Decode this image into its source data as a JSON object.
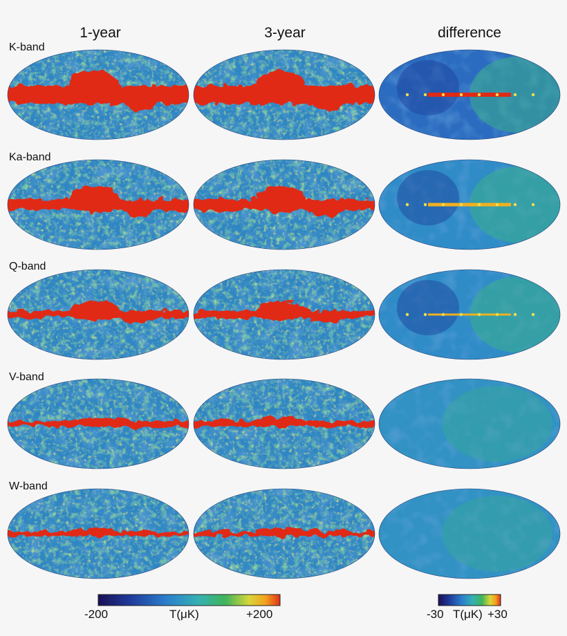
{
  "columns": [
    "1-year",
    "3-year",
    "difference"
  ],
  "bands": [
    {
      "label": "K-band",
      "gal_width": 26,
      "bulge": 22
    },
    {
      "label": "Ka-band",
      "gal_width": 16,
      "bulge": 20
    },
    {
      "label": "Q-band",
      "gal_width": 11,
      "bulge": 14
    },
    {
      "label": "V-band",
      "gal_width": 8,
      "bulge": 5
    },
    {
      "label": "W-band",
      "gal_width": 7,
      "bulge": 4
    }
  ],
  "colorbar_main": {
    "min_label": "-200",
    "mid_label": "T(μK)",
    "max_label": "+200"
  },
  "colorbar_diff": {
    "min_label": "-30",
    "mid_label": "T(μK)",
    "max_label": "+30"
  },
  "colors": {
    "scale": [
      "#1a0f5a",
      "#1c3a9a",
      "#2a76c8",
      "#3aa7c9",
      "#3bb38d",
      "#6fc16a",
      "#d8d94a",
      "#f0b020",
      "#e23a1f"
    ],
    "galaxy": "#e02a16"
  }
}
